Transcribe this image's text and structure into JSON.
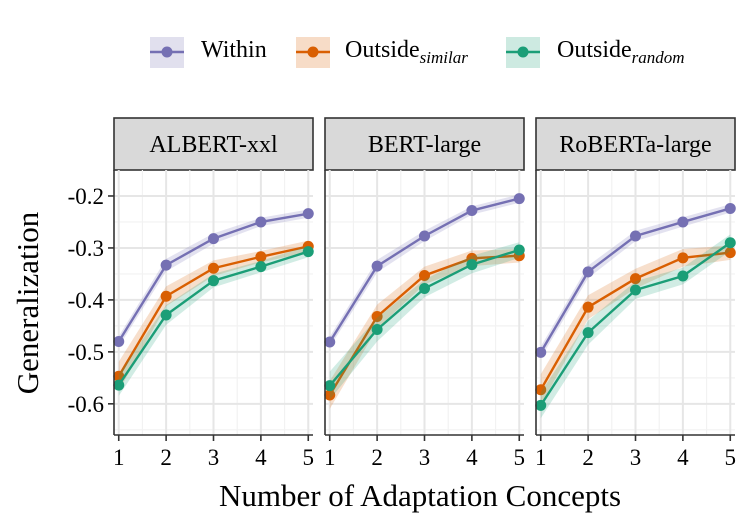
{
  "chart_data": {
    "type": "line",
    "xlabel": "Number of Adaptation Concepts",
    "ylabel": "Generalization",
    "x": [
      1,
      2,
      3,
      4,
      5
    ],
    "xlim": [
      0.9,
      5.1
    ],
    "ylim": [
      -0.66,
      -0.15
    ],
    "yticks": [
      -0.6,
      -0.5,
      -0.4,
      -0.3,
      -0.2
    ],
    "ytick_labels": [
      "-0.6",
      "-0.5",
      "-0.4",
      "-0.3",
      "-0.2"
    ],
    "xtick_labels": [
      "1",
      "2",
      "3",
      "4",
      "5"
    ],
    "grid": true,
    "legend_position": "top",
    "legend": [
      {
        "key": "within",
        "base": "Within",
        "sub": "",
        "color": "#7570B3"
      },
      {
        "key": "outside_similar",
        "base": "Outside",
        "sub": "similar",
        "color": "#D95F02"
      },
      {
        "key": "outside_random",
        "base": "Outside",
        "sub": "random",
        "color": "#1B9E77"
      }
    ],
    "panels": [
      {
        "title": "ALBERT-xxl",
        "series": [
          {
            "key": "within",
            "values": [
              -0.48,
              -0.333,
              -0.282,
              -0.25,
              -0.234
            ],
            "lower": [
              -0.49,
              -0.345,
              -0.292,
              -0.258,
              -0.242
            ],
            "upper": [
              -0.47,
              -0.321,
              -0.272,
              -0.242,
              -0.226
            ]
          },
          {
            "key": "outside_similar",
            "values": [
              -0.547,
              -0.393,
              -0.339,
              -0.317,
              -0.297
            ],
            "lower": [
              -0.575,
              -0.412,
              -0.354,
              -0.328,
              -0.308
            ],
            "upper": [
              -0.519,
              -0.374,
              -0.324,
              -0.306,
              -0.286
            ]
          },
          {
            "key": "outside_random",
            "values": [
              -0.564,
              -0.429,
              -0.363,
              -0.336,
              -0.307
            ],
            "lower": [
              -0.585,
              -0.448,
              -0.376,
              -0.347,
              -0.318
            ],
            "upper": [
              -0.543,
              -0.41,
              -0.35,
              -0.325,
              -0.296
            ]
          }
        ]
      },
      {
        "title": "BERT-large",
        "series": [
          {
            "key": "within",
            "values": [
              -0.481,
              -0.335,
              -0.277,
              -0.228,
              -0.205
            ],
            "lower": [
              -0.491,
              -0.347,
              -0.287,
              -0.236,
              -0.213
            ],
            "upper": [
              -0.471,
              -0.323,
              -0.267,
              -0.22,
              -0.197
            ]
          },
          {
            "key": "outside_similar",
            "values": [
              -0.583,
              -0.432,
              -0.353,
              -0.32,
              -0.315
            ],
            "lower": [
              -0.61,
              -0.455,
              -0.37,
              -0.335,
              -0.328
            ],
            "upper": [
              -0.556,
              -0.409,
              -0.336,
              -0.305,
              -0.302
            ]
          },
          {
            "key": "outside_random",
            "values": [
              -0.565,
              -0.457,
              -0.378,
              -0.332,
              -0.304
            ],
            "lower": [
              -0.592,
              -0.48,
              -0.395,
              -0.349,
              -0.319
            ],
            "upper": [
              -0.538,
              -0.434,
              -0.361,
              -0.315,
              -0.289
            ]
          }
        ]
      },
      {
        "title": "RoBERTa-large",
        "series": [
          {
            "key": "within",
            "values": [
              -0.501,
              -0.346,
              -0.277,
              -0.25,
              -0.224
            ],
            "lower": [
              -0.512,
              -0.358,
              -0.287,
              -0.259,
              -0.232
            ],
            "upper": [
              -0.49,
              -0.334,
              -0.267,
              -0.241,
              -0.216
            ]
          },
          {
            "key": "outside_similar",
            "values": [
              -0.573,
              -0.414,
              -0.359,
              -0.319,
              -0.309
            ],
            "lower": [
              -0.603,
              -0.437,
              -0.378,
              -0.336,
              -0.323
            ],
            "upper": [
              -0.543,
              -0.391,
              -0.34,
              -0.302,
              -0.295
            ]
          },
          {
            "key": "outside_random",
            "values": [
              -0.603,
              -0.463,
              -0.381,
              -0.354,
              -0.29
            ],
            "lower": [
              -0.628,
              -0.486,
              -0.398,
              -0.37,
              -0.306
            ],
            "upper": [
              -0.578,
              -0.44,
              -0.364,
              -0.338,
              -0.274
            ]
          }
        ]
      }
    ]
  }
}
